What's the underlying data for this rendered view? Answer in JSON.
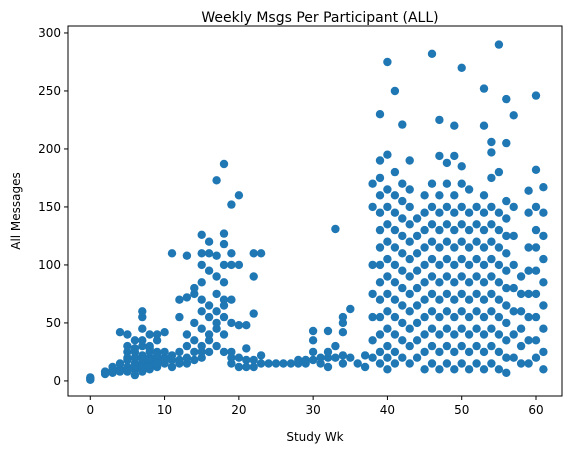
{
  "chart_data": {
    "type": "scatter",
    "title": "Weekly Msgs Per Participant (ALL)",
    "xlabel": "Study Wk",
    "ylabel": "All Messages",
    "xlim": [
      -3,
      63.5
    ],
    "ylim": [
      -13,
      306
    ],
    "xticks": [
      0,
      10,
      20,
      30,
      40,
      50,
      60
    ],
    "yticks": [
      0,
      50,
      100,
      150,
      200,
      250,
      300
    ],
    "grid": false,
    "legend": "none",
    "marker_color": "#1f77b4",
    "points": [
      [
        0,
        2
      ],
      [
        0,
        3
      ],
      [
        0,
        1
      ],
      [
        2,
        6
      ],
      [
        2,
        8
      ],
      [
        3,
        7
      ],
      [
        3,
        12
      ],
      [
        3,
        9
      ],
      [
        4,
        10
      ],
      [
        4,
        15
      ],
      [
        4,
        42
      ],
      [
        4,
        8
      ],
      [
        5,
        12
      ],
      [
        5,
        18
      ],
      [
        5,
        25
      ],
      [
        5,
        40
      ],
      [
        5,
        8
      ],
      [
        5,
        30
      ],
      [
        5,
        20
      ],
      [
        6,
        10
      ],
      [
        6,
        15
      ],
      [
        6,
        20
      ],
      [
        6,
        25
      ],
      [
        6,
        35
      ],
      [
        6,
        12
      ],
      [
        6,
        5
      ],
      [
        6,
        28
      ],
      [
        7,
        8
      ],
      [
        7,
        15
      ],
      [
        7,
        22
      ],
      [
        7,
        30
      ],
      [
        7,
        45
      ],
      [
        7,
        55
      ],
      [
        7,
        60
      ],
      [
        7,
        18
      ],
      [
        7,
        12
      ],
      [
        7,
        35
      ],
      [
        8,
        10
      ],
      [
        8,
        15
      ],
      [
        8,
        20
      ],
      [
        8,
        25
      ],
      [
        8,
        30
      ],
      [
        8,
        40
      ],
      [
        8,
        18
      ],
      [
        8,
        12
      ],
      [
        8,
        28
      ],
      [
        9,
        12
      ],
      [
        9,
        18
      ],
      [
        9,
        22
      ],
      [
        9,
        35
      ],
      [
        9,
        40
      ],
      [
        9,
        15
      ],
      [
        9,
        25
      ],
      [
        10,
        15
      ],
      [
        10,
        20
      ],
      [
        10,
        25
      ],
      [
        10,
        42
      ],
      [
        10,
        18
      ],
      [
        11,
        12
      ],
      [
        11,
        18
      ],
      [
        11,
        110
      ],
      [
        11,
        22
      ],
      [
        12,
        15
      ],
      [
        12,
        25
      ],
      [
        12,
        55
      ],
      [
        12,
        70
      ],
      [
        12,
        18
      ],
      [
        13,
        15
      ],
      [
        13,
        20
      ],
      [
        13,
        30
      ],
      [
        13,
        72
      ],
      [
        13,
        108
      ],
      [
        13,
        40
      ],
      [
        14,
        18
      ],
      [
        14,
        25
      ],
      [
        14,
        50
      ],
      [
        14,
        75
      ],
      [
        14,
        80
      ],
      [
        14,
        35
      ],
      [
        15,
        20
      ],
      [
        15,
        30
      ],
      [
        15,
        45
      ],
      [
        15,
        60
      ],
      [
        15,
        70
      ],
      [
        15,
        85
      ],
      [
        15,
        100
      ],
      [
        15,
        110
      ],
      [
        15,
        126
      ],
      [
        15,
        25
      ],
      [
        16,
        25
      ],
      [
        16,
        40
      ],
      [
        16,
        55
      ],
      [
        16,
        65
      ],
      [
        16,
        95
      ],
      [
        16,
        110
      ],
      [
        16,
        120
      ],
      [
        16,
        35
      ],
      [
        17,
        30
      ],
      [
        17,
        45
      ],
      [
        17,
        60
      ],
      [
        17,
        75
      ],
      [
        17,
        90
      ],
      [
        17,
        108
      ],
      [
        17,
        173
      ],
      [
        17,
        50
      ],
      [
        18,
        25
      ],
      [
        18,
        40
      ],
      [
        18,
        55
      ],
      [
        18,
        70
      ],
      [
        18,
        85
      ],
      [
        18,
        100
      ],
      [
        18,
        118
      ],
      [
        18,
        127
      ],
      [
        18,
        187
      ],
      [
        18,
        65
      ],
      [
        19,
        15
      ],
      [
        19,
        25
      ],
      [
        19,
        50
      ],
      [
        19,
        70
      ],
      [
        19,
        100
      ],
      [
        19,
        110
      ],
      [
        19,
        152
      ],
      [
        19,
        20
      ],
      [
        20,
        12
      ],
      [
        20,
        20
      ],
      [
        20,
        48
      ],
      [
        20,
        160
      ],
      [
        20,
        100
      ],
      [
        21,
        12
      ],
      [
        21,
        18
      ],
      [
        21,
        28
      ],
      [
        21,
        48
      ],
      [
        22,
        12
      ],
      [
        22,
        18
      ],
      [
        22,
        58
      ],
      [
        22,
        90
      ],
      [
        22,
        110
      ],
      [
        23,
        15
      ],
      [
        23,
        22
      ],
      [
        23,
        110
      ],
      [
        24,
        15
      ],
      [
        25,
        15
      ],
      [
        26,
        15
      ],
      [
        27,
        15
      ],
      [
        28,
        18
      ],
      [
        28,
        15
      ],
      [
        29,
        15
      ],
      [
        29,
        18
      ],
      [
        30,
        18
      ],
      [
        30,
        25
      ],
      [
        30,
        35
      ],
      [
        30,
        43
      ],
      [
        31,
        15
      ],
      [
        31,
        20
      ],
      [
        32,
        12
      ],
      [
        32,
        20
      ],
      [
        32,
        25
      ],
      [
        32,
        43
      ],
      [
        33,
        20
      ],
      [
        33,
        30
      ],
      [
        33,
        131
      ],
      [
        34,
        15
      ],
      [
        34,
        22
      ],
      [
        34,
        42
      ],
      [
        34,
        50
      ],
      [
        34,
        55
      ],
      [
        35,
        20
      ],
      [
        35,
        62
      ],
      [
        36,
        15
      ],
      [
        37,
        12
      ],
      [
        37,
        22
      ],
      [
        38,
        20
      ],
      [
        38,
        35
      ],
      [
        38,
        55
      ],
      [
        38,
        75
      ],
      [
        38,
        100
      ],
      [
        38,
        150
      ],
      [
        38,
        170
      ],
      [
        39,
        15
      ],
      [
        39,
        25
      ],
      [
        39,
        40
      ],
      [
        39,
        55
      ],
      [
        39,
        70
      ],
      [
        39,
        85
      ],
      [
        39,
        100
      ],
      [
        39,
        115
      ],
      [
        39,
        130
      ],
      [
        39,
        145
      ],
      [
        39,
        160
      ],
      [
        39,
        175
      ],
      [
        39,
        190
      ],
      [
        39,
        230
      ],
      [
        40,
        10
      ],
      [
        40,
        20
      ],
      [
        40,
        30
      ],
      [
        40,
        45
      ],
      [
        40,
        60
      ],
      [
        40,
        75
      ],
      [
        40,
        90
      ],
      [
        40,
        105
      ],
      [
        40,
        120
      ],
      [
        40,
        135
      ],
      [
        40,
        150
      ],
      [
        40,
        165
      ],
      [
        40,
        195
      ],
      [
        40,
        275
      ],
      [
        41,
        15
      ],
      [
        41,
        25
      ],
      [
        41,
        40
      ],
      [
        41,
        55
      ],
      [
        41,
        70
      ],
      [
        41,
        85
      ],
      [
        41,
        100
      ],
      [
        41,
        115
      ],
      [
        41,
        130
      ],
      [
        41,
        145
      ],
      [
        41,
        160
      ],
      [
        41,
        180
      ],
      [
        41,
        250
      ],
      [
        42,
        20
      ],
      [
        42,
        35
      ],
      [
        42,
        50
      ],
      [
        42,
        65
      ],
      [
        42,
        80
      ],
      [
        42,
        95
      ],
      [
        42,
        110
      ],
      [
        42,
        125
      ],
      [
        42,
        140
      ],
      [
        42,
        155
      ],
      [
        42,
        170
      ],
      [
        42,
        221
      ],
      [
        43,
        15
      ],
      [
        43,
        30
      ],
      [
        43,
        45
      ],
      [
        43,
        60
      ],
      [
        43,
        75
      ],
      [
        43,
        90
      ],
      [
        43,
        105
      ],
      [
        43,
        120
      ],
      [
        43,
        135
      ],
      [
        43,
        150
      ],
      [
        43,
        165
      ],
      [
        43,
        190
      ],
      [
        44,
        20
      ],
      [
        44,
        35
      ],
      [
        44,
        50
      ],
      [
        44,
        65
      ],
      [
        44,
        80
      ],
      [
        44,
        95
      ],
      [
        44,
        110
      ],
      [
        44,
        125
      ],
      [
        44,
        140
      ],
      [
        45,
        10
      ],
      [
        45,
        25
      ],
      [
        45,
        40
      ],
      [
        45,
        55
      ],
      [
        45,
        70
      ],
      [
        45,
        85
      ],
      [
        45,
        100
      ],
      [
        45,
        115
      ],
      [
        45,
        130
      ],
      [
        45,
        145
      ],
      [
        45,
        160
      ],
      [
        46,
        15
      ],
      [
        46,
        30
      ],
      [
        46,
        45
      ],
      [
        46,
        60
      ],
      [
        46,
        75
      ],
      [
        46,
        90
      ],
      [
        46,
        105
      ],
      [
        46,
        120
      ],
      [
        46,
        135
      ],
      [
        46,
        150
      ],
      [
        46,
        170
      ],
      [
        46,
        282
      ],
      [
        47,
        10
      ],
      [
        47,
        25
      ],
      [
        47,
        40
      ],
      [
        47,
        55
      ],
      [
        47,
        70
      ],
      [
        47,
        85
      ],
      [
        47,
        100
      ],
      [
        47,
        115
      ],
      [
        47,
        130
      ],
      [
        47,
        145
      ],
      [
        47,
        160
      ],
      [
        47,
        194
      ],
      [
        47,
        225
      ],
      [
        48,
        15
      ],
      [
        48,
        30
      ],
      [
        48,
        45
      ],
      [
        48,
        60
      ],
      [
        48,
        75
      ],
      [
        48,
        90
      ],
      [
        48,
        105
      ],
      [
        48,
        120
      ],
      [
        48,
        135
      ],
      [
        48,
        150
      ],
      [
        48,
        170
      ],
      [
        48,
        188
      ],
      [
        49,
        10
      ],
      [
        49,
        25
      ],
      [
        49,
        40
      ],
      [
        49,
        55
      ],
      [
        49,
        70
      ],
      [
        49,
        85
      ],
      [
        49,
        100
      ],
      [
        49,
        115
      ],
      [
        49,
        130
      ],
      [
        49,
        145
      ],
      [
        49,
        160
      ],
      [
        49,
        194
      ],
      [
        49,
        220
      ],
      [
        50,
        15
      ],
      [
        50,
        30
      ],
      [
        50,
        45
      ],
      [
        50,
        60
      ],
      [
        50,
        75
      ],
      [
        50,
        90
      ],
      [
        50,
        105
      ],
      [
        50,
        120
      ],
      [
        50,
        135
      ],
      [
        50,
        150
      ],
      [
        50,
        170
      ],
      [
        50,
        185
      ],
      [
        50,
        270
      ],
      [
        51,
        10
      ],
      [
        51,
        25
      ],
      [
        51,
        40
      ],
      [
        51,
        55
      ],
      [
        51,
        70
      ],
      [
        51,
        85
      ],
      [
        51,
        100
      ],
      [
        51,
        115
      ],
      [
        51,
        130
      ],
      [
        51,
        145
      ],
      [
        51,
        165
      ],
      [
        52,
        15
      ],
      [
        52,
        30
      ],
      [
        52,
        45
      ],
      [
        52,
        60
      ],
      [
        52,
        75
      ],
      [
        52,
        90
      ],
      [
        52,
        105
      ],
      [
        52,
        120
      ],
      [
        52,
        135
      ],
      [
        52,
        150
      ],
      [
        53,
        10
      ],
      [
        53,
        25
      ],
      [
        53,
        40
      ],
      [
        53,
        55
      ],
      [
        53,
        70
      ],
      [
        53,
        85
      ],
      [
        53,
        100
      ],
      [
        53,
        115
      ],
      [
        53,
        130
      ],
      [
        53,
        145
      ],
      [
        53,
        160
      ],
      [
        53,
        220
      ],
      [
        53,
        252
      ],
      [
        54,
        15
      ],
      [
        54,
        30
      ],
      [
        54,
        45
      ],
      [
        54,
        60
      ],
      [
        54,
        75
      ],
      [
        54,
        90
      ],
      [
        54,
        105
      ],
      [
        54,
        120
      ],
      [
        54,
        135
      ],
      [
        54,
        150
      ],
      [
        54,
        175
      ],
      [
        54,
        206
      ],
      [
        54,
        197
      ],
      [
        55,
        10
      ],
      [
        55,
        25
      ],
      [
        55,
        40
      ],
      [
        55,
        55
      ],
      [
        55,
        70
      ],
      [
        55,
        85
      ],
      [
        55,
        100
      ],
      [
        55,
        115
      ],
      [
        55,
        130
      ],
      [
        55,
        145
      ],
      [
        55,
        180
      ],
      [
        55,
        290
      ],
      [
        56,
        7
      ],
      [
        56,
        20
      ],
      [
        56,
        35
      ],
      [
        56,
        50
      ],
      [
        56,
        65
      ],
      [
        56,
        80
      ],
      [
        56,
        95
      ],
      [
        56,
        110
      ],
      [
        56,
        125
      ],
      [
        56,
        140
      ],
      [
        56,
        155
      ],
      [
        56,
        205
      ],
      [
        56,
        243
      ],
      [
        57,
        20
      ],
      [
        57,
        40
      ],
      [
        57,
        60
      ],
      [
        57,
        80
      ],
      [
        57,
        100
      ],
      [
        57,
        125
      ],
      [
        57,
        150
      ],
      [
        57,
        229
      ],
      [
        58,
        15
      ],
      [
        58,
        30
      ],
      [
        58,
        45
      ],
      [
        58,
        60
      ],
      [
        58,
        75
      ],
      [
        58,
        90
      ],
      [
        59,
        15
      ],
      [
        59,
        35
      ],
      [
        59,
        55
      ],
      [
        59,
        75
      ],
      [
        59,
        95
      ],
      [
        59,
        115
      ],
      [
        59,
        145
      ],
      [
        59,
        164
      ],
      [
        60,
        20
      ],
      [
        60,
        35
      ],
      [
        60,
        55
      ],
      [
        60,
        75
      ],
      [
        60,
        95
      ],
      [
        60,
        115
      ],
      [
        60,
        130
      ],
      [
        60,
        150
      ],
      [
        60,
        182
      ],
      [
        60,
        246
      ],
      [
        61,
        10
      ],
      [
        61,
        25
      ],
      [
        61,
        45
      ],
      [
        61,
        65
      ],
      [
        61,
        85
      ],
      [
        61,
        105
      ],
      [
        61,
        125
      ],
      [
        61,
        145
      ],
      [
        61,
        167
      ]
    ]
  }
}
